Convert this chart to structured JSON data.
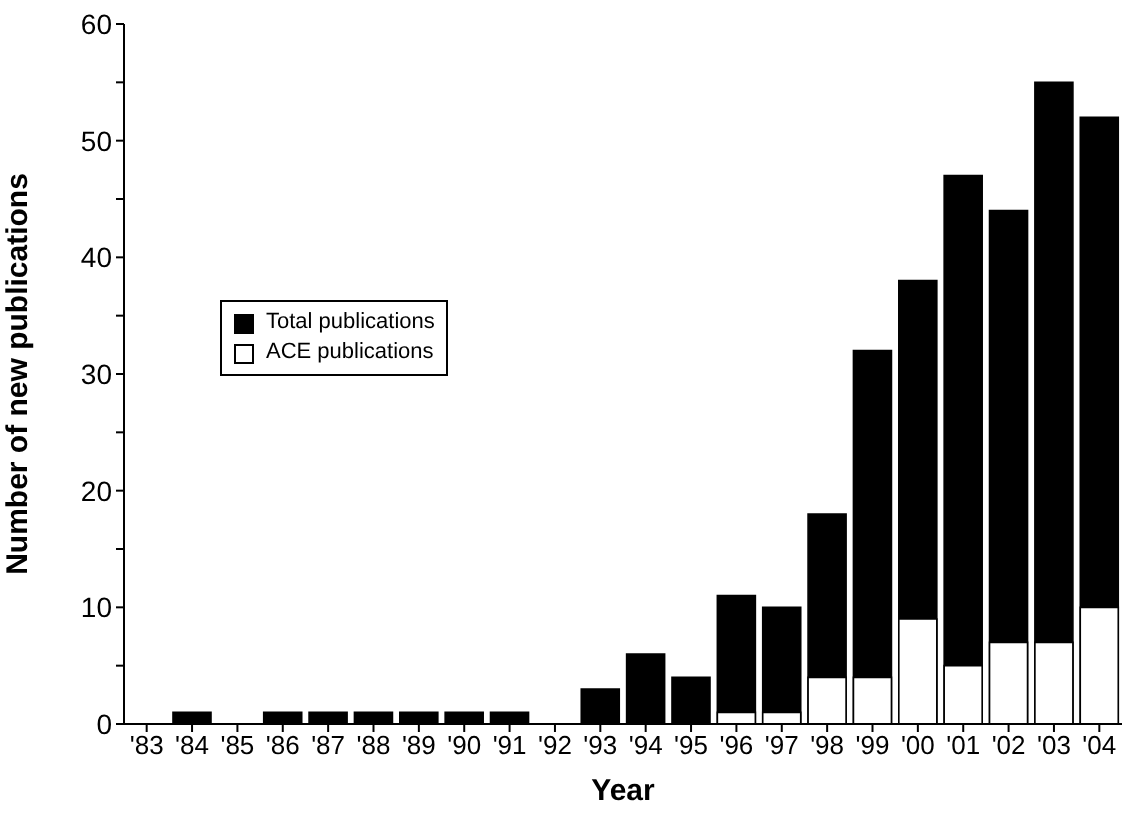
{
  "chart_data": {
    "type": "bar",
    "xlabel": "Year",
    "ylabel": "Number of new publications",
    "categories": [
      "'83",
      "'84",
      "'85",
      "'86",
      "'87",
      "'88",
      "'89",
      "'90",
      "'91",
      "'92",
      "'93",
      "'94",
      "'95",
      "'96",
      "'97",
      "'98",
      "'99",
      "'00",
      "'01",
      "'02",
      "'03",
      "'04"
    ],
    "series": [
      {
        "name": "Total publications",
        "color": "#000000",
        "values": [
          0,
          1,
          0,
          1,
          1,
          1,
          1,
          1,
          1,
          0,
          3,
          6,
          4,
          11,
          10,
          18,
          32,
          38,
          47,
          44,
          55,
          52
        ]
      },
      {
        "name": "ACE publications",
        "color": "#ffffff",
        "values": [
          0,
          0,
          0,
          0,
          0,
          0,
          0,
          0,
          0,
          0,
          0,
          0,
          0,
          1,
          1,
          4,
          4,
          9,
          5,
          7,
          7,
          10
        ]
      }
    ],
    "ylim": [
      0,
      60
    ],
    "yticks": [
      0,
      {
        "value": 5,
        "label": null
      },
      10,
      {
        "value": 15,
        "label": null
      },
      20,
      {
        "value": 25,
        "label": null
      },
      30,
      {
        "value": 35,
        "label": null
      },
      40,
      {
        "value": 45,
        "label": null
      },
      50,
      {
        "value": 55,
        "label": null
      },
      60
    ],
    "legend": "left",
    "grid": false
  }
}
